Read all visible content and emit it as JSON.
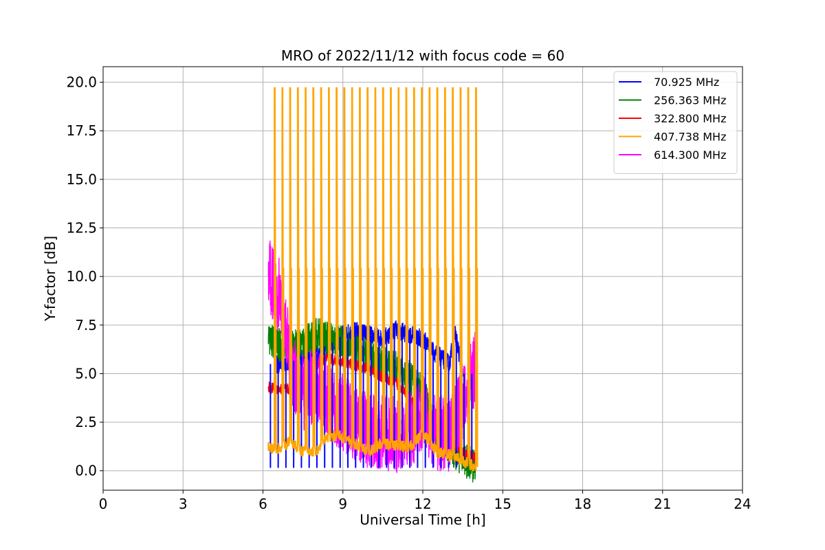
{
  "chart_data": {
    "type": "line",
    "title": "MRO of 2022/11/12 with focus code = 60",
    "xlabel": "Universal Time [h]",
    "ylabel": "Y-factor [dB]",
    "xlim": [
      0,
      24
    ],
    "ylim": [
      -1.0,
      20.8
    ],
    "xticks": [
      0,
      3,
      6,
      9,
      12,
      15,
      18,
      21,
      24
    ],
    "xtick_labels": [
      "0",
      "3",
      "6",
      "9",
      "12",
      "15",
      "18",
      "21",
      "24"
    ],
    "yticks": [
      0,
      2.5,
      5,
      7.5,
      10,
      12.5,
      15,
      17.5,
      20
    ],
    "ytick_labels": [
      "0.0",
      "2.5",
      "5.0",
      "7.5",
      "10.0",
      "12.5",
      "15.0",
      "17.5",
      "20.0"
    ],
    "grid": true,
    "legend_position": "top-right",
    "calibration_pulses": {
      "start": 6.2,
      "end": 14.05,
      "count": 27,
      "peak_value": 19.7,
      "plateau_value": 10.4
    },
    "series": [
      {
        "name": "70.925 MHz",
        "color": "#0000ff",
        "x": [
          6.5,
          7.0,
          7.5,
          8.0,
          8.5,
          9.0,
          9.5,
          10.0,
          10.5,
          11.0,
          11.5,
          12.0,
          12.5,
          13.0,
          13.2,
          13.5
        ],
        "y": [
          5.5,
          5.6,
          5.8,
          6.0,
          6.5,
          7.0,
          7.2,
          7.0,
          6.8,
          7.3,
          7.0,
          6.8,
          6.0,
          5.5,
          7.2,
          5.0
        ],
        "spread": 0.5,
        "dips": {
          "value": 0.15,
          "count": 27
        }
      },
      {
        "name": "256.363 MHz",
        "color": "#008000",
        "x": [
          6.2,
          6.5,
          7.0,
          7.5,
          8.0,
          8.5,
          9.0,
          9.5,
          10.0,
          10.5,
          11.0,
          11.5,
          12.0,
          12.5,
          13.0,
          13.5,
          14.0
        ],
        "y": [
          6.8,
          6.5,
          6.3,
          6.6,
          7.0,
          6.8,
          6.6,
          6.3,
          5.8,
          5.5,
          5.3,
          4.8,
          4.2,
          2.0,
          1.2,
          0.6,
          0.2
        ],
        "spread": 0.9
      },
      {
        "name": "322.800 MHz",
        "color": "#ff0000",
        "x": [
          6.2,
          6.5,
          7.0,
          7.5,
          8.0,
          8.5,
          9.0,
          9.5,
          10.0,
          10.5,
          11.0,
          11.5,
          12.0,
          12.5,
          13.0,
          13.5,
          14.0
        ],
        "y": [
          4.3,
          4.2,
          4.2,
          4.8,
          5.5,
          5.8,
          5.6,
          5.4,
          5.2,
          4.8,
          4.5,
          3.8,
          2.5,
          2.0,
          1.6,
          1.0,
          0.6
        ],
        "spread": 0.3
      },
      {
        "name": "407.738 MHz",
        "color": "#ffa500",
        "x": [
          6.2,
          6.5,
          7.0,
          7.5,
          8.0,
          8.5,
          9.0,
          9.5,
          10.0,
          10.5,
          11.0,
          11.5,
          12.0,
          12.5,
          13.0,
          13.5,
          14.0
        ],
        "y": [
          1.2,
          1.1,
          1.5,
          1.0,
          1.0,
          1.8,
          1.7,
          1.3,
          1.0,
          1.4,
          1.3,
          1.2,
          1.9,
          1.0,
          0.8,
          0.5,
          0.2
        ],
        "spread": 0.3
      },
      {
        "name": "614.300 MHz",
        "color": "#ff00ff",
        "x": [
          6.2,
          6.5,
          6.8,
          7.0,
          7.5,
          8.0,
          8.5,
          9.0,
          9.5,
          10.0,
          10.5,
          11.0,
          11.5,
          12.0,
          12.5,
          13.0,
          13.5,
          14.0
        ],
        "y": [
          10.0,
          9.5,
          8.0,
          5.5,
          4.0,
          4.5,
          3.5,
          3.0,
          2.5,
          2.0,
          2.0,
          1.8,
          2.0,
          3.0,
          2.0,
          1.8,
          3.5,
          5.5
        ],
        "spread": 2.0
      }
    ]
  }
}
